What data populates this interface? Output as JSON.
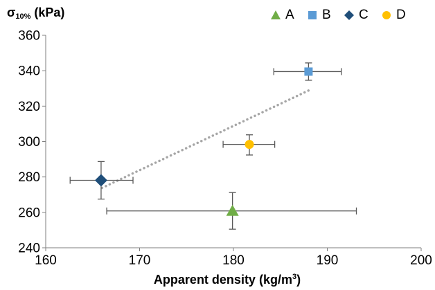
{
  "chart_data": {
    "type": "scatter",
    "title": "",
    "ylabel": {
      "prefix": "σ",
      "sub": "10%",
      "suffix": " (kPa)"
    },
    "xlabel": {
      "main": "Apparent density  (kg/m",
      "sup": "3",
      "end": ")"
    },
    "xlim": [
      160,
      200
    ],
    "ylim": [
      240,
      360
    ],
    "x_ticks": [
      160,
      170,
      180,
      190,
      200
    ],
    "y_ticks": [
      240,
      260,
      280,
      300,
      320,
      340,
      360
    ],
    "grid": false,
    "legend_position": "top-right",
    "series": [
      {
        "name": "A",
        "marker": "triangle",
        "color": "#70ad47",
        "x": 179.9,
        "y": 260.8,
        "x_err": [
          166.5,
          193.1
        ],
        "y_err": [
          250.5,
          271.2
        ]
      },
      {
        "name": "B",
        "marker": "square",
        "color": "#5b9bd5",
        "x": 188.0,
        "y": 339.5,
        "x_err": [
          184.3,
          191.5
        ],
        "y_err": [
          334.6,
          344.4
        ]
      },
      {
        "name": "C",
        "marker": "diamond",
        "color": "#1f4e79",
        "x": 165.9,
        "y": 278.1,
        "x_err": [
          162.6,
          169.3
        ],
        "y_err": [
          267.5,
          288.7
        ]
      },
      {
        "name": "D",
        "marker": "circle",
        "color": "#ffc000",
        "x": 181.7,
        "y": 298.4,
        "x_err": [
          178.9,
          184.4
        ],
        "y_err": [
          292.4,
          303.8
        ]
      }
    ],
    "trendline": {
      "style": "dotted",
      "color": "#a6a6a6",
      "from": [
        166.0,
        273.8
      ],
      "to": [
        188.0,
        328.8
      ]
    },
    "error_bar_color": "#595959",
    "axis_color": "#7f7f7f"
  }
}
